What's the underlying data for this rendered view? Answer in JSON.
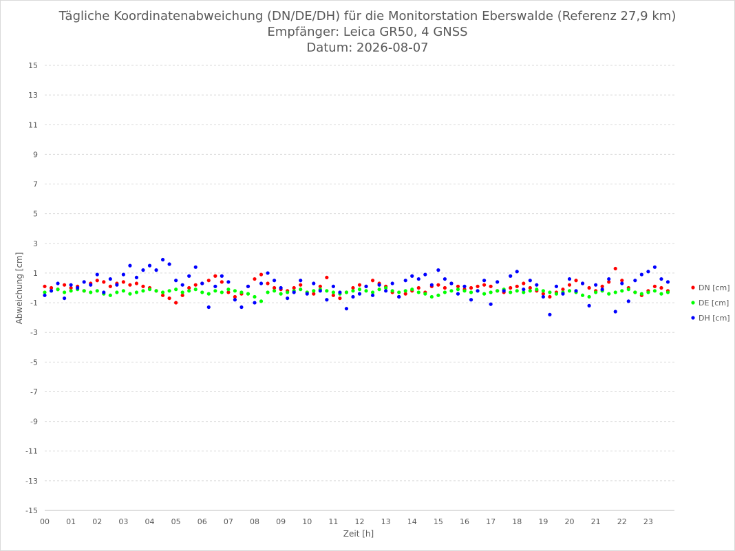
{
  "chart_data": {
    "type": "scatter",
    "title": "Tägliche Koordinatenabweichung (DN/DE/DH) für die Monitorstation Eberswalde (Referenz 27,9 km)",
    "subtitle": "Empfänger: Leica GR50, 4 GNSS",
    "date_line": "Datum: 2026-08-07",
    "xlabel": "Zeit [h]",
    "ylabel": "Abweichung [cm]",
    "xlim": [
      0,
      24
    ],
    "ylim": [
      -15,
      15
    ],
    "x_ticks": [
      "00",
      "01",
      "02",
      "03",
      "04",
      "05",
      "06",
      "07",
      "08",
      "09",
      "10",
      "11",
      "12",
      "13",
      "14",
      "15",
      "16",
      "17",
      "18",
      "19",
      "20",
      "21",
      "22",
      "23"
    ],
    "y_ticks": [
      15,
      13,
      11,
      9,
      7,
      5,
      3,
      1,
      -1,
      -3,
      -5,
      -7,
      -9,
      -11,
      -13,
      -15
    ],
    "y_tick_labels": [
      "15",
      "13",
      "11",
      "9",
      "7",
      "5",
      "3",
      "1",
      "-1",
      "-3",
      "-5",
      "-7",
      "-9",
      "-11",
      "-13",
      "-15"
    ],
    "grid": "horizontal dashed",
    "legend_position": "right",
    "series": [
      {
        "name": "DN [cm]",
        "color": "#ff0000",
        "values": [
          [
            0.0,
            0.1
          ],
          [
            0.25,
            0.0
          ],
          [
            0.5,
            -0.1
          ],
          [
            0.75,
            0.2
          ],
          [
            1.0,
            0.0
          ],
          [
            1.25,
            0.1
          ],
          [
            1.5,
            -0.2
          ],
          [
            1.75,
            0.3
          ],
          [
            2.0,
            0.5
          ],
          [
            2.25,
            0.4
          ],
          [
            2.5,
            0.1
          ],
          [
            2.75,
            0.3
          ],
          [
            3.0,
            0.4
          ],
          [
            3.25,
            0.2
          ],
          [
            3.5,
            0.3
          ],
          [
            3.75,
            0.1
          ],
          [
            4.0,
            0.0
          ],
          [
            4.25,
            -0.2
          ],
          [
            4.5,
            -0.5
          ],
          [
            4.75,
            -0.7
          ],
          [
            5.0,
            -1.0
          ],
          [
            5.25,
            -0.5
          ],
          [
            5.5,
            0.0
          ],
          [
            5.75,
            0.2
          ],
          [
            6.0,
            0.3
          ],
          [
            6.25,
            0.5
          ],
          [
            6.5,
            0.8
          ],
          [
            6.75,
            0.4
          ],
          [
            7.0,
            -0.3
          ],
          [
            7.25,
            -0.6
          ],
          [
            7.5,
            -0.4
          ],
          [
            7.75,
            0.1
          ],
          [
            8.0,
            0.6
          ],
          [
            8.25,
            0.9
          ],
          [
            8.5,
            0.3
          ],
          [
            8.75,
            0.0
          ],
          [
            9.0,
            -0.1
          ],
          [
            9.25,
            -0.2
          ],
          [
            9.5,
            0.0
          ],
          [
            9.75,
            0.2
          ],
          [
            10.0,
            -0.3
          ],
          [
            10.25,
            -0.4
          ],
          [
            10.5,
            0.1
          ],
          [
            10.75,
            0.7
          ],
          [
            11.0,
            -0.5
          ],
          [
            11.25,
            -0.7
          ],
          [
            11.5,
            -0.3
          ],
          [
            11.75,
            0.0
          ],
          [
            12.0,
            0.2
          ],
          [
            12.25,
            0.1
          ],
          [
            12.5,
            0.5
          ],
          [
            12.75,
            0.3
          ],
          [
            13.0,
            0.1
          ],
          [
            13.25,
            -0.3
          ],
          [
            13.5,
            -0.6
          ],
          [
            13.75,
            -0.4
          ],
          [
            14.0,
            -0.2
          ],
          [
            14.25,
            0.0
          ],
          [
            14.5,
            -0.3
          ],
          [
            14.75,
            0.1
          ],
          [
            15.0,
            0.2
          ],
          [
            15.25,
            0.0
          ],
          [
            15.5,
            0.3
          ],
          [
            15.75,
            0.1
          ],
          [
            16.0,
            -0.1
          ],
          [
            16.25,
            0.0
          ],
          [
            16.5,
            0.1
          ],
          [
            16.75,
            0.2
          ],
          [
            17.0,
            0.1
          ],
          [
            17.25,
            -0.2
          ],
          [
            17.5,
            -0.3
          ],
          [
            17.75,
            0.0
          ],
          [
            18.0,
            0.1
          ],
          [
            18.25,
            0.3
          ],
          [
            18.5,
            0.0
          ],
          [
            18.75,
            -0.2
          ],
          [
            19.0,
            -0.4
          ],
          [
            19.25,
            -0.6
          ],
          [
            19.5,
            -0.3
          ],
          [
            19.75,
            -0.1
          ],
          [
            20.0,
            0.2
          ],
          [
            20.25,
            0.5
          ],
          [
            20.5,
            0.3
          ],
          [
            20.75,
            0.0
          ],
          [
            21.0,
            -0.2
          ],
          [
            21.25,
            0.1
          ],
          [
            21.5,
            0.4
          ],
          [
            21.75,
            1.3
          ],
          [
            22.0,
            0.5
          ],
          [
            22.25,
            0.0
          ],
          [
            22.5,
            -0.3
          ],
          [
            22.75,
            -0.5
          ],
          [
            23.0,
            -0.2
          ],
          [
            23.25,
            0.1
          ],
          [
            23.5,
            0.0
          ],
          [
            23.75,
            -0.2
          ]
        ]
      },
      {
        "name": "DE [cm]",
        "color": "#00ff00",
        "values": [
          [
            0.0,
            -0.3
          ],
          [
            0.25,
            -0.2
          ],
          [
            0.5,
            -0.1
          ],
          [
            0.75,
            -0.3
          ],
          [
            1.0,
            -0.2
          ],
          [
            1.25,
            -0.1
          ],
          [
            1.5,
            -0.2
          ],
          [
            1.75,
            -0.3
          ],
          [
            2.0,
            -0.2
          ],
          [
            2.25,
            -0.4
          ],
          [
            2.5,
            -0.5
          ],
          [
            2.75,
            -0.3
          ],
          [
            3.0,
            -0.2
          ],
          [
            3.25,
            -0.4
          ],
          [
            3.5,
            -0.3
          ],
          [
            3.75,
            -0.2
          ],
          [
            4.0,
            -0.1
          ],
          [
            4.25,
            -0.2
          ],
          [
            4.5,
            -0.3
          ],
          [
            4.75,
            -0.2
          ],
          [
            5.0,
            -0.1
          ],
          [
            5.25,
            -0.3
          ],
          [
            5.5,
            -0.2
          ],
          [
            5.75,
            -0.1
          ],
          [
            6.0,
            -0.3
          ],
          [
            6.25,
            -0.4
          ],
          [
            6.5,
            -0.2
          ],
          [
            6.75,
            -0.3
          ],
          [
            7.0,
            -0.1
          ],
          [
            7.25,
            -0.2
          ],
          [
            7.5,
            -0.3
          ],
          [
            7.75,
            -0.4
          ],
          [
            8.0,
            -0.6
          ],
          [
            8.25,
            -0.9
          ],
          [
            8.5,
            -0.3
          ],
          [
            8.75,
            -0.2
          ],
          [
            9.0,
            -0.4
          ],
          [
            9.25,
            -0.3
          ],
          [
            9.5,
            -0.2
          ],
          [
            9.75,
            -0.1
          ],
          [
            10.0,
            -0.3
          ],
          [
            10.25,
            -0.2
          ],
          [
            10.5,
            -0.1
          ],
          [
            10.75,
            -0.2
          ],
          [
            11.0,
            -0.3
          ],
          [
            11.25,
            -0.4
          ],
          [
            11.5,
            -0.3
          ],
          [
            11.75,
            -0.2
          ],
          [
            12.0,
            -0.1
          ],
          [
            12.25,
            -0.2
          ],
          [
            12.5,
            -0.3
          ],
          [
            12.75,
            -0.1
          ],
          [
            13.0,
            0.0
          ],
          [
            13.25,
            -0.2
          ],
          [
            13.5,
            -0.3
          ],
          [
            13.75,
            -0.2
          ],
          [
            14.0,
            -0.1
          ],
          [
            14.25,
            -0.3
          ],
          [
            14.5,
            -0.4
          ],
          [
            14.75,
            -0.6
          ],
          [
            15.0,
            -0.5
          ],
          [
            15.25,
            -0.3
          ],
          [
            15.5,
            -0.2
          ],
          [
            15.75,
            -0.1
          ],
          [
            16.0,
            -0.2
          ],
          [
            16.25,
            -0.3
          ],
          [
            16.5,
            -0.2
          ],
          [
            16.75,
            -0.4
          ],
          [
            17.0,
            -0.3
          ],
          [
            17.25,
            -0.2
          ],
          [
            17.5,
            -0.1
          ],
          [
            17.75,
            -0.3
          ],
          [
            18.0,
            -0.2
          ],
          [
            18.25,
            -0.3
          ],
          [
            18.5,
            -0.2
          ],
          [
            18.75,
            -0.1
          ],
          [
            19.0,
            -0.2
          ],
          [
            19.25,
            -0.3
          ],
          [
            19.5,
            -0.4
          ],
          [
            19.75,
            -0.3
          ],
          [
            20.0,
            -0.2
          ],
          [
            20.25,
            -0.3
          ],
          [
            20.5,
            -0.5
          ],
          [
            20.75,
            -0.6
          ],
          [
            21.0,
            -0.3
          ],
          [
            21.25,
            -0.2
          ],
          [
            21.5,
            -0.4
          ],
          [
            21.75,
            -0.3
          ],
          [
            22.0,
            -0.2
          ],
          [
            22.25,
            -0.1
          ],
          [
            22.5,
            -0.3
          ],
          [
            22.75,
            -0.4
          ],
          [
            23.0,
            -0.3
          ],
          [
            23.25,
            -0.2
          ],
          [
            23.5,
            -0.4
          ],
          [
            23.75,
            -0.3
          ]
        ]
      },
      {
        "name": "DH [cm]",
        "color": "#0000ff",
        "values": [
          [
            0.0,
            -0.5
          ],
          [
            0.25,
            -0.2
          ],
          [
            0.5,
            0.3
          ],
          [
            0.75,
            -0.7
          ],
          [
            1.0,
            0.2
          ],
          [
            1.25,
            0.0
          ],
          [
            1.5,
            0.4
          ],
          [
            1.75,
            0.2
          ],
          [
            2.0,
            0.9
          ],
          [
            2.25,
            -0.3
          ],
          [
            2.5,
            0.6
          ],
          [
            2.75,
            0.2
          ],
          [
            3.0,
            0.9
          ],
          [
            3.25,
            1.5
          ],
          [
            3.5,
            0.7
          ],
          [
            3.75,
            1.2
          ],
          [
            4.0,
            1.5
          ],
          [
            4.25,
            1.2
          ],
          [
            4.5,
            1.9
          ],
          [
            4.75,
            1.6
          ],
          [
            5.0,
            0.5
          ],
          [
            5.25,
            0.2
          ],
          [
            5.5,
            0.8
          ],
          [
            5.75,
            1.4
          ],
          [
            6.0,
            0.3
          ],
          [
            6.25,
            -1.3
          ],
          [
            6.5,
            0.1
          ],
          [
            6.75,
            0.8
          ],
          [
            7.0,
            0.4
          ],
          [
            7.25,
            -0.8
          ],
          [
            7.5,
            -1.3
          ],
          [
            7.75,
            0.1
          ],
          [
            8.0,
            -1.0
          ],
          [
            8.25,
            0.3
          ],
          [
            8.5,
            1.0
          ],
          [
            8.75,
            0.5
          ],
          [
            9.0,
            0.0
          ],
          [
            9.25,
            -0.7
          ],
          [
            9.5,
            -0.3
          ],
          [
            9.75,
            0.5
          ],
          [
            10.0,
            -0.4
          ],
          [
            10.25,
            0.3
          ],
          [
            10.5,
            -0.2
          ],
          [
            10.75,
            -0.8
          ],
          [
            11.0,
            0.1
          ],
          [
            11.25,
            -0.3
          ],
          [
            11.5,
            -1.4
          ],
          [
            11.75,
            -0.6
          ],
          [
            12.0,
            -0.4
          ],
          [
            12.25,
            0.1
          ],
          [
            12.5,
            -0.5
          ],
          [
            12.75,
            0.2
          ],
          [
            13.0,
            -0.2
          ],
          [
            13.25,
            0.3
          ],
          [
            13.5,
            -0.6
          ],
          [
            13.75,
            0.5
          ],
          [
            14.0,
            0.8
          ],
          [
            14.25,
            0.6
          ],
          [
            14.5,
            0.9
          ],
          [
            14.75,
            0.2
          ],
          [
            15.0,
            1.2
          ],
          [
            15.25,
            0.6
          ],
          [
            15.5,
            0.3
          ],
          [
            15.75,
            -0.4
          ],
          [
            16.0,
            0.1
          ],
          [
            16.25,
            -0.8
          ],
          [
            16.5,
            -0.2
          ],
          [
            16.75,
            0.5
          ],
          [
            17.0,
            -1.1
          ],
          [
            17.25,
            0.4
          ],
          [
            17.5,
            -0.2
          ],
          [
            17.75,
            0.8
          ],
          [
            18.0,
            1.1
          ],
          [
            18.25,
            -0.1
          ],
          [
            18.5,
            0.5
          ],
          [
            18.75,
            0.2
          ],
          [
            19.0,
            -0.6
          ],
          [
            19.25,
            -1.8
          ],
          [
            19.5,
            0.1
          ],
          [
            19.75,
            -0.4
          ],
          [
            20.0,
            0.6
          ],
          [
            20.25,
            -0.2
          ],
          [
            20.5,
            0.3
          ],
          [
            20.75,
            -1.2
          ],
          [
            21.0,
            0.2
          ],
          [
            21.25,
            -0.1
          ],
          [
            21.5,
            0.6
          ],
          [
            21.75,
            -1.6
          ],
          [
            22.0,
            0.3
          ],
          [
            22.25,
            -0.9
          ],
          [
            22.5,
            0.5
          ],
          [
            22.75,
            0.9
          ],
          [
            23.0,
            1.1
          ],
          [
            23.25,
            1.4
          ],
          [
            23.5,
            0.6
          ],
          [
            23.75,
            0.4
          ]
        ]
      }
    ]
  }
}
